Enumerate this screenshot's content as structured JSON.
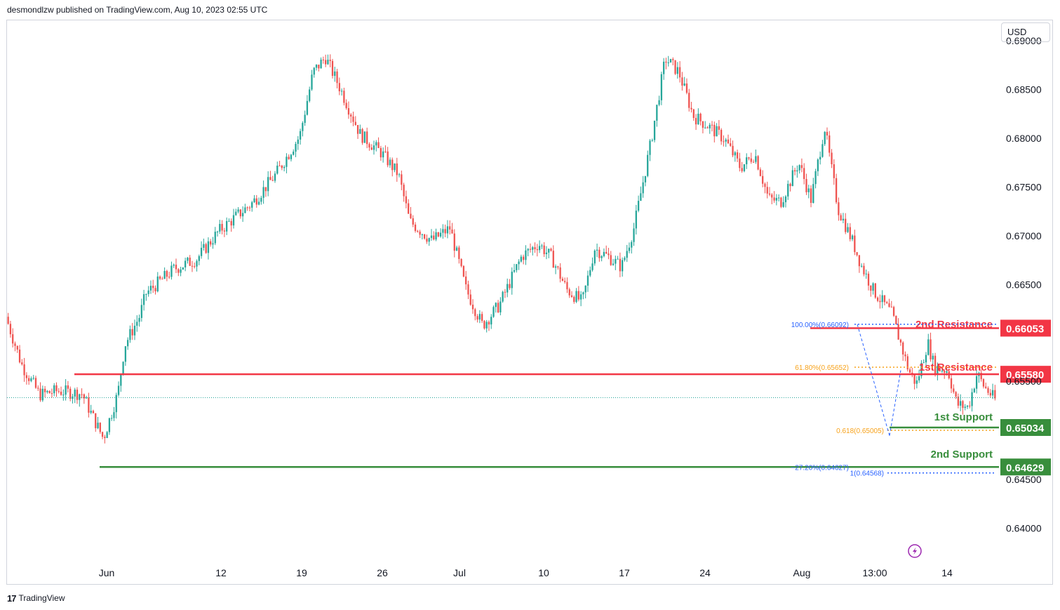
{
  "header": {
    "publish_text": "desmondlzw published on TradingView.com, Aug 10, 2023 02:55 UTC"
  },
  "footer": {
    "brand": "TradingView"
  },
  "currency_button": "USD",
  "colors": {
    "up": "#26a69a",
    "down": "#ef5350",
    "resistance": "#f23645",
    "support": "#388e3c",
    "fib_blue": "#2962ff",
    "fib_orange": "#f7a21b",
    "flash": "#9c27b0"
  },
  "chart_data": {
    "type": "candlestick",
    "title": "",
    "ylim": [
      0.6363,
      0.6921
    ],
    "y_ticks": [
      "0.69000",
      "0.68500",
      "0.68000",
      "0.67500",
      "0.67000",
      "0.66500",
      "0.64500",
      "0.64000"
    ],
    "x_ticks": [
      "Jun",
      "12",
      "19",
      "26",
      "Jul",
      "10",
      "17",
      "24",
      "Aug",
      "13:00",
      "14"
    ],
    "price_path": [
      [
        0.0,
        0.6617
      ],
      [
        0.014,
        0.6568
      ],
      [
        0.03,
        0.6537
      ],
      [
        0.046,
        0.6541
      ],
      [
        0.068,
        0.6538
      ],
      [
        0.076,
        0.6518
      ],
      [
        0.087,
        0.6492
      ],
      [
        0.1,
        0.6539
      ],
      [
        0.106,
        0.6588
      ],
      [
        0.119,
        0.6617
      ],
      [
        0.125,
        0.6641
      ],
      [
        0.15,
        0.6666
      ],
      [
        0.17,
        0.6676
      ],
      [
        0.19,
        0.6705
      ],
      [
        0.22,
        0.6734
      ],
      [
        0.24,
        0.6762
      ],
      [
        0.262,
        0.6802
      ],
      [
        0.274,
        0.6868
      ],
      [
        0.285,
        0.6883
      ],
      [
        0.297,
        0.6854
      ],
      [
        0.316,
        0.6804
      ],
      [
        0.335,
        0.6785
      ],
      [
        0.35,
        0.6763
      ],
      [
        0.36,
        0.6715
      ],
      [
        0.38,
        0.6695
      ],
      [
        0.396,
        0.6708
      ],
      [
        0.41,
        0.6646
      ],
      [
        0.425,
        0.6608
      ],
      [
        0.44,
        0.6629
      ],
      [
        0.46,
        0.6679
      ],
      [
        0.475,
        0.6692
      ],
      [
        0.487,
        0.6677
      ],
      [
        0.5,
        0.6645
      ],
      [
        0.514,
        0.6632
      ],
      [
        0.525,
        0.6687
      ],
      [
        0.538,
        0.6678
      ],
      [
        0.549,
        0.6668
      ],
      [
        0.56,
        0.6708
      ],
      [
        0.575,
        0.6795
      ],
      [
        0.588,
        0.6882
      ],
      [
        0.6,
        0.6868
      ],
      [
        0.613,
        0.6823
      ],
      [
        0.627,
        0.6812
      ],
      [
        0.641,
        0.6799
      ],
      [
        0.655,
        0.677
      ],
      [
        0.668,
        0.6784
      ],
      [
        0.68,
        0.6738
      ],
      [
        0.691,
        0.6735
      ],
      [
        0.707,
        0.6775
      ],
      [
        0.718,
        0.6737
      ],
      [
        0.73,
        0.6812
      ],
      [
        0.742,
        0.6728
      ],
      [
        0.755,
        0.6694
      ],
      [
        0.763,
        0.6669
      ],
      [
        0.774,
        0.6643
      ],
      [
        0.79,
        0.662
      ],
      [
        0.805,
        0.6562
      ],
      [
        0.812,
        0.6548
      ],
      [
        0.822,
        0.6591
      ],
      [
        0.828,
        0.6565
      ],
      [
        0.84,
        0.6562
      ],
      [
        0.848,
        0.6527
      ],
      [
        0.858,
        0.6524
      ],
      [
        0.866,
        0.6559
      ],
      [
        0.872,
        0.6546
      ],
      [
        0.882,
        0.6532
      ]
    ],
    "levels": [
      {
        "name": "2nd Resistance",
        "value": "0.66053",
        "kind": "resistance"
      },
      {
        "name": "1st Resistance",
        "value": "0.65580",
        "kind": "resistance"
      },
      {
        "name": "1st Support",
        "value": "0.65034",
        "kind": "support"
      },
      {
        "name": "2nd Support",
        "value": "0.64629",
        "kind": "support"
      }
    ],
    "fib_labels": [
      {
        "text": "100.00%(0.66092)",
        "value": 0.66092,
        "color": "blue"
      },
      {
        "text": "61.80%(0.65652)",
        "value": 0.65652,
        "color": "orange"
      },
      {
        "text": "0.618(0.65005)",
        "value": 0.65005,
        "color": "orange"
      },
      {
        "text": "−27.20%(0.64627)",
        "value": 0.64627,
        "color": "blue"
      },
      {
        "text": "1(0.64568)",
        "value": 0.64568,
        "color": "blue"
      }
    ],
    "current_price_partial": "0.65500"
  }
}
